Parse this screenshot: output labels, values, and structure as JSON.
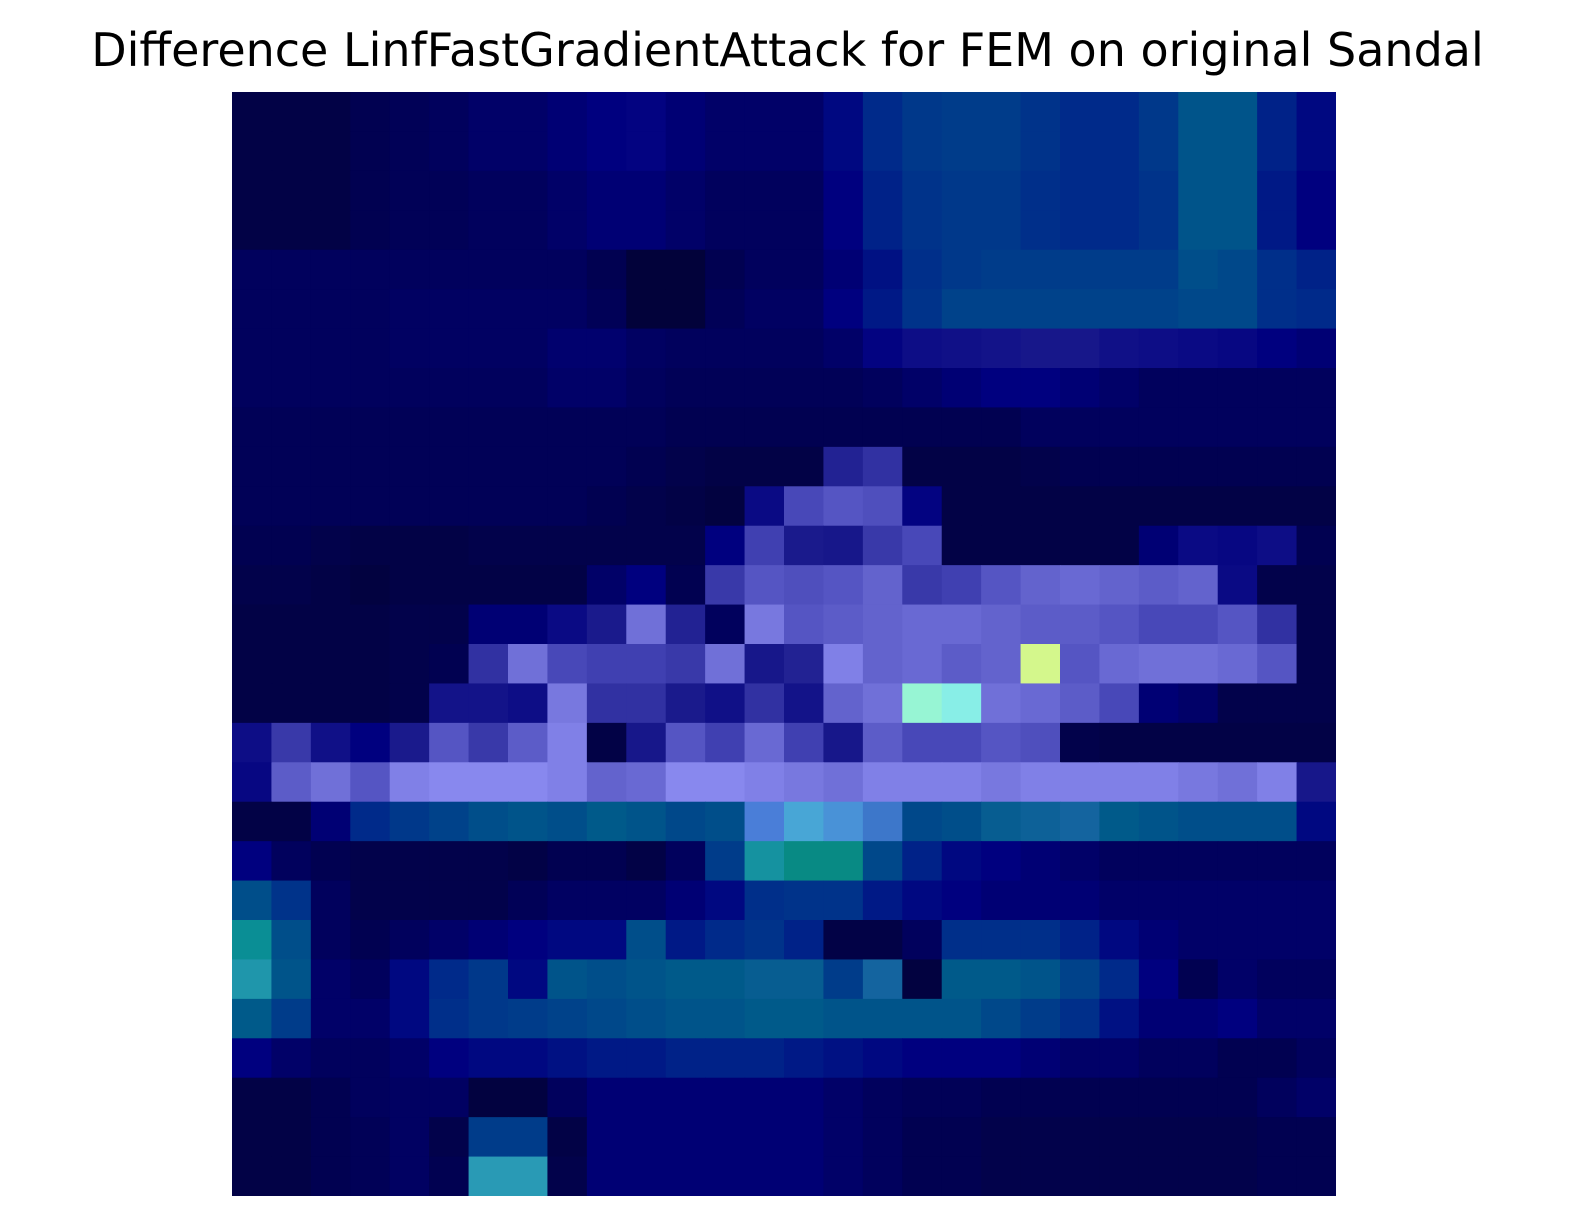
{
  "chart_data": {
    "type": "heatmap",
    "title": "Difference LinfFastGradientAttack for FEM on original Sandal",
    "xlabel": "",
    "ylabel": "",
    "axis": "off",
    "rows": 28,
    "cols": 28,
    "colors": {
      "lowest": "#02023a",
      "low": "#00007f",
      "mid": "#003c8a",
      "violet": "#7878e6",
      "cyan": "#008a8a",
      "highest": "#d4f78c"
    },
    "values": [
      [
        0.02,
        0.02,
        0.02,
        0.04,
        0.05,
        0.06,
        0.08,
        0.08,
        0.1,
        0.12,
        0.14,
        0.1,
        0.08,
        0.08,
        0.08,
        0.14,
        0.22,
        0.28,
        0.3,
        0.3,
        0.26,
        0.22,
        0.22,
        0.28,
        0.38,
        0.38,
        0.2,
        0.14
      ],
      [
        0.02,
        0.02,
        0.02,
        0.04,
        0.05,
        0.06,
        0.08,
        0.08,
        0.1,
        0.12,
        0.14,
        0.1,
        0.08,
        0.08,
        0.08,
        0.14,
        0.22,
        0.28,
        0.3,
        0.3,
        0.26,
        0.22,
        0.22,
        0.28,
        0.38,
        0.38,
        0.2,
        0.14
      ],
      [
        0.02,
        0.02,
        0.02,
        0.04,
        0.05,
        0.05,
        0.06,
        0.06,
        0.08,
        0.1,
        0.1,
        0.08,
        0.06,
        0.06,
        0.06,
        0.12,
        0.2,
        0.26,
        0.28,
        0.28,
        0.24,
        0.22,
        0.22,
        0.26,
        0.38,
        0.38,
        0.18,
        0.12
      ],
      [
        0.02,
        0.02,
        0.02,
        0.04,
        0.05,
        0.05,
        0.06,
        0.06,
        0.08,
        0.1,
        0.1,
        0.08,
        0.06,
        0.06,
        0.06,
        0.12,
        0.2,
        0.26,
        0.28,
        0.28,
        0.24,
        0.22,
        0.22,
        0.26,
        0.38,
        0.38,
        0.18,
        0.12
      ],
      [
        0.06,
        0.06,
        0.06,
        0.06,
        0.06,
        0.06,
        0.06,
        0.06,
        0.06,
        0.04,
        0.0,
        0.0,
        0.04,
        0.06,
        0.06,
        0.1,
        0.16,
        0.24,
        0.28,
        0.3,
        0.3,
        0.3,
        0.3,
        0.3,
        0.36,
        0.34,
        0.24,
        0.2
      ],
      [
        0.06,
        0.06,
        0.06,
        0.06,
        0.07,
        0.07,
        0.07,
        0.07,
        0.07,
        0.05,
        0.0,
        0.0,
        0.05,
        0.07,
        0.07,
        0.12,
        0.18,
        0.26,
        0.32,
        0.32,
        0.32,
        0.32,
        0.32,
        0.32,
        0.34,
        0.34,
        0.24,
        0.22
      ],
      [
        0.06,
        0.06,
        0.06,
        0.06,
        0.07,
        0.07,
        0.07,
        0.07,
        0.09,
        0.09,
        0.07,
        0.06,
        0.06,
        0.06,
        0.06,
        0.08,
        0.14,
        0.2,
        0.22,
        0.24,
        0.26,
        0.26,
        0.22,
        0.2,
        0.18,
        0.16,
        0.12,
        0.1
      ],
      [
        0.06,
        0.06,
        0.06,
        0.06,
        0.06,
        0.06,
        0.06,
        0.06,
        0.08,
        0.08,
        0.06,
        0.05,
        0.05,
        0.05,
        0.05,
        0.05,
        0.06,
        0.08,
        0.1,
        0.12,
        0.12,
        0.1,
        0.08,
        0.06,
        0.06,
        0.06,
        0.06,
        0.06
      ],
      [
        0.05,
        0.05,
        0.05,
        0.05,
        0.05,
        0.05,
        0.05,
        0.05,
        0.05,
        0.05,
        0.05,
        0.04,
        0.04,
        0.04,
        0.04,
        0.04,
        0.04,
        0.04,
        0.04,
        0.04,
        0.06,
        0.06,
        0.06,
        0.06,
        0.06,
        0.06,
        0.06,
        0.06
      ],
      [
        0.05,
        0.05,
        0.05,
        0.05,
        0.05,
        0.05,
        0.05,
        0.05,
        0.05,
        0.05,
        0.04,
        0.03,
        0.02,
        0.02,
        0.02,
        0.3,
        0.34,
        0.02,
        0.02,
        0.02,
        0.03,
        0.04,
        0.04,
        0.04,
        0.04,
        0.04,
        0.04,
        0.04
      ],
      [
        0.05,
        0.05,
        0.05,
        0.05,
        0.05,
        0.05,
        0.05,
        0.05,
        0.05,
        0.04,
        0.03,
        0.02,
        0.01,
        0.18,
        0.4,
        0.44,
        0.42,
        0.14,
        0.02,
        0.02,
        0.02,
        0.02,
        0.02,
        0.02,
        0.02,
        0.02,
        0.02,
        0.02
      ],
      [
        0.04,
        0.04,
        0.03,
        0.02,
        0.02,
        0.02,
        0.03,
        0.03,
        0.03,
        0.03,
        0.03,
        0.03,
        0.12,
        0.38,
        0.28,
        0.26,
        0.36,
        0.4,
        0.02,
        0.02,
        0.02,
        0.02,
        0.02,
        0.1,
        0.18,
        0.16,
        0.2,
        0.04
      ],
      [
        0.03,
        0.03,
        0.02,
        0.01,
        0.02,
        0.02,
        0.02,
        0.02,
        0.02,
        0.08,
        0.12,
        0.04,
        0.36,
        0.44,
        0.42,
        0.44,
        0.48,
        0.36,
        0.38,
        0.44,
        0.48,
        0.5,
        0.48,
        0.46,
        0.48,
        0.18,
        0.03,
        0.03
      ],
      [
        0.02,
        0.02,
        0.02,
        0.02,
        0.03,
        0.03,
        0.1,
        0.1,
        0.18,
        0.28,
        0.52,
        0.3,
        0.06,
        0.54,
        0.44,
        0.46,
        0.48,
        0.5,
        0.5,
        0.48,
        0.46,
        0.46,
        0.44,
        0.4,
        0.4,
        0.44,
        0.34,
        0.03
      ],
      [
        0.02,
        0.02,
        0.02,
        0.02,
        0.03,
        0.04,
        0.34,
        0.52,
        0.4,
        0.38,
        0.38,
        0.36,
        0.52,
        0.26,
        0.3,
        0.56,
        0.48,
        0.5,
        0.46,
        0.48,
        1.0,
        0.44,
        0.5,
        0.52,
        0.52,
        0.5,
        0.44,
        0.03
      ],
      [
        0.02,
        0.02,
        0.02,
        0.02,
        0.03,
        0.24,
        0.24,
        0.2,
        0.54,
        0.34,
        0.34,
        0.28,
        0.22,
        0.34,
        0.24,
        0.48,
        0.52,
        0.92,
        0.88,
        0.52,
        0.5,
        0.46,
        0.4,
        0.1,
        0.08,
        0.03,
        0.03,
        0.03
      ],
      [
        0.2,
        0.36,
        0.22,
        0.12,
        0.28,
        0.44,
        0.36,
        0.46,
        0.56,
        0.02,
        0.26,
        0.44,
        0.38,
        0.5,
        0.38,
        0.26,
        0.46,
        0.4,
        0.4,
        0.44,
        0.42,
        0.03,
        0.02,
        0.02,
        0.02,
        0.02,
        0.02,
        0.02
      ],
      [
        0.16,
        0.46,
        0.52,
        0.44,
        0.56,
        0.58,
        0.58,
        0.58,
        0.56,
        0.48,
        0.5,
        0.58,
        0.58,
        0.56,
        0.54,
        0.52,
        0.56,
        0.56,
        0.56,
        0.54,
        0.56,
        0.56,
        0.56,
        0.56,
        0.54,
        0.52,
        0.56,
        0.26
      ],
      [
        0.02,
        0.02,
        0.1,
        0.22,
        0.28,
        0.32,
        0.36,
        0.38,
        0.36,
        0.4,
        0.38,
        0.34,
        0.36,
        0.62,
        0.66,
        0.64,
        0.58,
        0.34,
        0.36,
        0.42,
        0.44,
        0.46,
        0.4,
        0.38,
        0.36,
        0.36,
        0.36,
        0.14
      ],
      [
        0.12,
        0.06,
        0.04,
        0.03,
        0.03,
        0.03,
        0.03,
        0.02,
        0.04,
        0.04,
        0.02,
        0.06,
        0.3,
        0.76,
        0.84,
        0.84,
        0.34,
        0.2,
        0.14,
        0.12,
        0.1,
        0.08,
        0.06,
        0.06,
        0.06,
        0.06,
        0.06,
        0.06
      ],
      [
        0.36,
        0.26,
        0.06,
        0.03,
        0.03,
        0.03,
        0.03,
        0.05,
        0.07,
        0.07,
        0.07,
        0.1,
        0.14,
        0.24,
        0.26,
        0.26,
        0.18,
        0.14,
        0.12,
        0.1,
        0.1,
        0.1,
        0.08,
        0.08,
        0.08,
        0.08,
        0.08,
        0.08
      ],
      [
        0.78,
        0.36,
        0.06,
        0.04,
        0.06,
        0.08,
        0.1,
        0.12,
        0.14,
        0.14,
        0.36,
        0.18,
        0.22,
        0.26,
        0.2,
        0.02,
        0.02,
        0.06,
        0.24,
        0.24,
        0.24,
        0.2,
        0.14,
        0.1,
        0.08,
        0.08,
        0.08,
        0.08
      ],
      [
        0.74,
        0.38,
        0.08,
        0.06,
        0.14,
        0.22,
        0.28,
        0.14,
        0.38,
        0.36,
        0.38,
        0.4,
        0.4,
        0.42,
        0.42,
        0.3,
        0.46,
        0.01,
        0.4,
        0.4,
        0.38,
        0.32,
        0.22,
        0.12,
        0.04,
        0.08,
        0.06,
        0.06
      ],
      [
        0.4,
        0.3,
        0.08,
        0.08,
        0.14,
        0.24,
        0.28,
        0.3,
        0.32,
        0.34,
        0.36,
        0.38,
        0.38,
        0.4,
        0.4,
        0.38,
        0.38,
        0.38,
        0.38,
        0.34,
        0.3,
        0.24,
        0.16,
        0.1,
        0.1,
        0.12,
        0.08,
        0.08
      ],
      [
        0.12,
        0.08,
        0.06,
        0.06,
        0.08,
        0.12,
        0.14,
        0.14,
        0.16,
        0.18,
        0.18,
        0.2,
        0.2,
        0.2,
        0.18,
        0.16,
        0.14,
        0.12,
        0.12,
        0.12,
        0.1,
        0.08,
        0.08,
        0.06,
        0.06,
        0.04,
        0.04,
        0.06
      ],
      [
        0.02,
        0.02,
        0.04,
        0.06,
        0.07,
        0.07,
        0.01,
        0.01,
        0.06,
        0.1,
        0.1,
        0.1,
        0.1,
        0.1,
        0.1,
        0.08,
        0.06,
        0.05,
        0.05,
        0.04,
        0.04,
        0.04,
        0.04,
        0.04,
        0.04,
        0.04,
        0.06,
        0.08
      ],
      [
        0.02,
        0.02,
        0.04,
        0.05,
        0.07,
        0.03,
        0.3,
        0.3,
        0.02,
        0.1,
        0.1,
        0.1,
        0.1,
        0.1,
        0.1,
        0.08,
        0.06,
        0.04,
        0.04,
        0.03,
        0.03,
        0.03,
        0.03,
        0.03,
        0.03,
        0.03,
        0.04,
        0.04
      ],
      [
        0.02,
        0.02,
        0.04,
        0.05,
        0.07,
        0.04,
        0.72,
        0.72,
        0.03,
        0.1,
        0.1,
        0.1,
        0.1,
        0.1,
        0.1,
        0.08,
        0.06,
        0.04,
        0.04,
        0.03,
        0.03,
        0.03,
        0.03,
        0.03,
        0.03,
        0.03,
        0.04,
        0.04
      ]
    ]
  }
}
